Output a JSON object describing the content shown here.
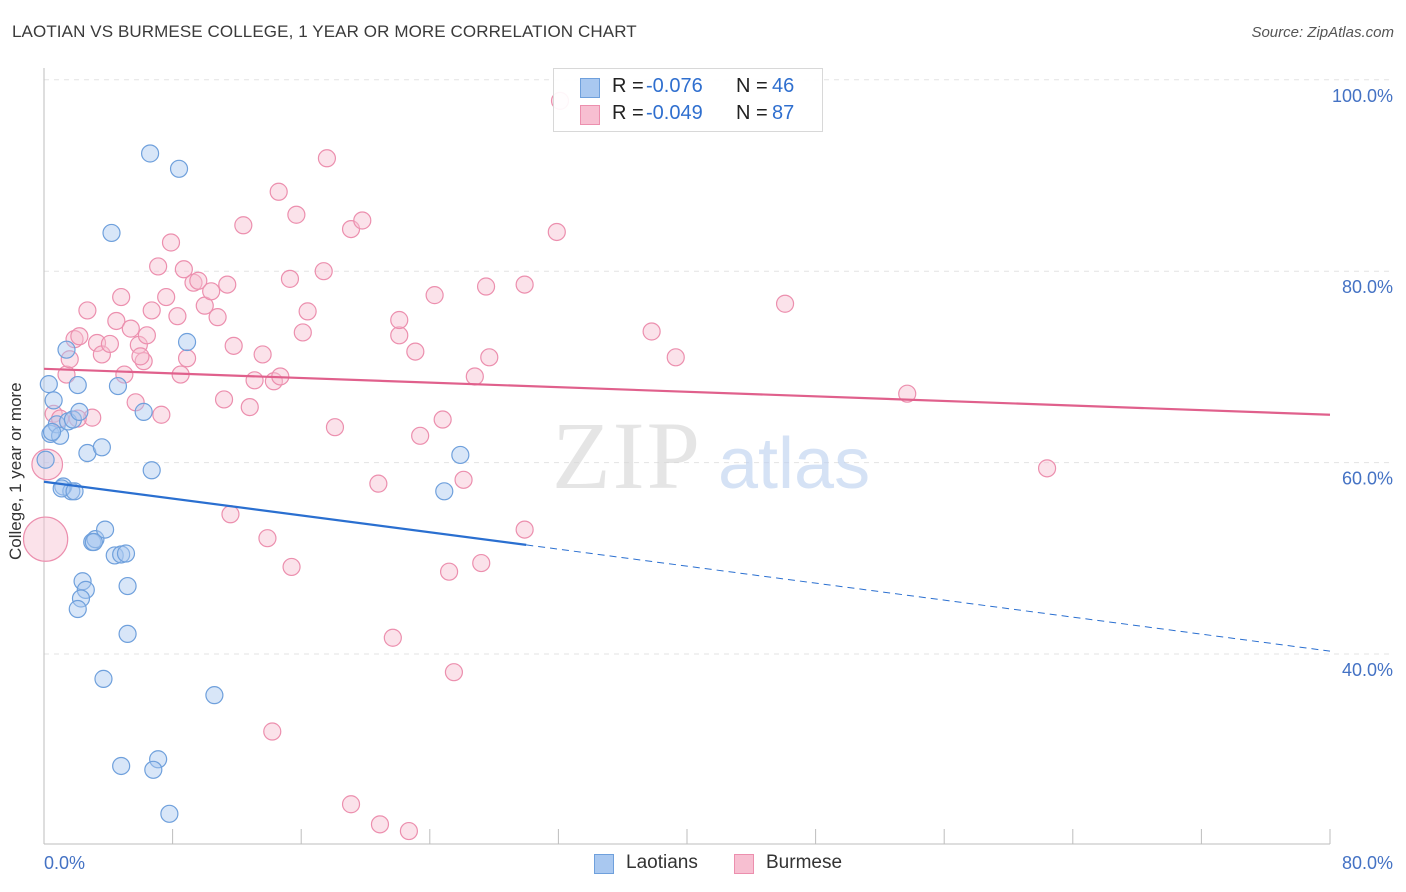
{
  "title": "LAOTIAN VS BURMESE COLLEGE, 1 YEAR OR MORE CORRELATION CHART",
  "source": "Source: ZipAtlas.com",
  "watermark": {
    "zip": "ZIP",
    "atlas": "atlas"
  },
  "legend": {
    "rows": [
      {
        "r_label": "R =",
        "r_value": "-0.076",
        "n_label": "N =",
        "n_value": "46"
      },
      {
        "r_label": "R =",
        "r_value": "-0.049",
        "n_label": "N =",
        "n_value": "87"
      }
    ]
  },
  "colors": {
    "laotians_fill": "#a9c8f0",
    "laotians_stroke": "#6fa0dc",
    "laotians_line": "#2a6fd0",
    "burmese_fill": "#f7bfd1",
    "burmese_stroke": "#ec8fae",
    "burmese_line": "#e0608c",
    "axis_text": "#4472c4",
    "grid": "#e3e3e3"
  },
  "chart_data": {
    "type": "scatter",
    "title": "LAOTIAN VS BURMESE COLLEGE, 1 YEAR OR MORE CORRELATION CHART",
    "xlabel": "",
    "ylabel": "College, 1 year or more",
    "xlim": [
      0,
      80
    ],
    "ylim": [
      20,
      102
    ],
    "x_tick_labels": [
      {
        "value": 0,
        "label": "0.0%"
      },
      {
        "value": 80,
        "label": "80.0%"
      }
    ],
    "y_tick_labels": [
      {
        "value": 40,
        "label": "40.0%"
      },
      {
        "value": 60,
        "label": "60.0%"
      },
      {
        "value": 80,
        "label": "80.0%"
      },
      {
        "value": 100,
        "label": "100.0%"
      }
    ],
    "series": [
      {
        "name": "Laotians",
        "r": -0.076,
        "n": 46,
        "trend": {
          "x0": 0,
          "y0": 58.0,
          "x1": 30,
          "y1": 51.4,
          "dash_to_x": 80,
          "dash_to_y": 40.3
        },
        "points": [
          [
            0.1,
            60.3,
            1
          ],
          [
            0.3,
            68.2,
            1
          ],
          [
            0.4,
            63.0,
            1
          ],
          [
            0.6,
            66.5,
            1
          ],
          [
            0.8,
            64.0,
            1
          ],
          [
            1.0,
            62.8,
            1
          ],
          [
            1.2,
            57.5,
            1
          ],
          [
            1.4,
            71.8,
            1
          ],
          [
            1.5,
            64.3,
            1
          ],
          [
            1.7,
            57.0,
            1
          ],
          [
            1.8,
            64.5,
            1
          ],
          [
            2.1,
            68.1,
            1
          ],
          [
            2.2,
            65.3,
            1
          ],
          [
            2.7,
            61.0,
            1
          ],
          [
            3.0,
            51.7,
            1
          ],
          [
            3.2,
            52.0,
            1
          ],
          [
            3.6,
            61.6,
            1
          ],
          [
            3.8,
            53.0,
            1
          ],
          [
            4.2,
            84.0,
            1
          ],
          [
            4.4,
            50.3,
            1
          ],
          [
            4.6,
            68.0,
            1
          ],
          [
            4.8,
            50.4,
            1
          ],
          [
            5.1,
            50.5,
            1
          ],
          [
            5.2,
            47.1,
            1
          ],
          [
            6.2,
            65.3,
            1
          ],
          [
            6.6,
            92.3,
            1
          ],
          [
            6.7,
            59.2,
            1
          ],
          [
            8.4,
            90.7,
            1
          ],
          [
            8.9,
            72.6,
            1
          ],
          [
            10.6,
            35.7,
            1
          ],
          [
            1.1,
            57.3,
            1
          ],
          [
            2.4,
            47.6,
            1
          ],
          [
            2.6,
            46.7,
            1
          ],
          [
            2.3,
            45.8,
            1
          ],
          [
            2.1,
            44.7,
            1
          ],
          [
            5.2,
            42.1,
            1
          ],
          [
            3.7,
            37.4,
            1
          ],
          [
            4.8,
            28.3,
            1
          ],
          [
            7.1,
            29.0,
            1
          ],
          [
            6.8,
            27.9,
            1
          ],
          [
            7.8,
            23.3,
            1
          ],
          [
            24.9,
            57.0,
            1
          ],
          [
            25.9,
            60.8,
            1
          ],
          [
            1.9,
            57.0,
            1
          ],
          [
            3.1,
            51.7,
            1
          ],
          [
            0.5,
            63.2,
            1
          ]
        ]
      },
      {
        "name": "Burmese",
        "r": -0.049,
        "n": 87,
        "trend": {
          "x0": 0,
          "y0": 69.8,
          "x1": 80,
          "y1": 65.0
        },
        "points": [
          [
            0.1,
            52.0,
            2.6
          ],
          [
            0.2,
            59.8,
            1.8
          ],
          [
            0.6,
            65.1,
            1
          ],
          [
            1.0,
            64.6,
            1
          ],
          [
            1.4,
            69.2,
            1
          ],
          [
            1.6,
            70.8,
            1
          ],
          [
            1.9,
            72.9,
            1
          ],
          [
            2.2,
            73.2,
            1
          ],
          [
            2.7,
            75.9,
            1
          ],
          [
            3.0,
            64.7,
            1
          ],
          [
            3.3,
            72.5,
            1
          ],
          [
            3.6,
            71.3,
            1
          ],
          [
            4.1,
            72.4,
            1
          ],
          [
            4.5,
            74.8,
            1
          ],
          [
            4.8,
            77.3,
            1
          ],
          [
            5.0,
            69.2,
            1
          ],
          [
            5.4,
            74.0,
            1
          ],
          [
            5.7,
            66.3,
            1
          ],
          [
            5.9,
            72.3,
            1
          ],
          [
            6.2,
            70.6,
            1
          ],
          [
            6.4,
            73.3,
            1
          ],
          [
            6.7,
            75.9,
            1
          ],
          [
            7.1,
            80.5,
            1
          ],
          [
            7.3,
            65.0,
            1
          ],
          [
            7.6,
            77.3,
            1
          ],
          [
            7.9,
            83.0,
            1
          ],
          [
            8.3,
            75.3,
            1
          ],
          [
            8.5,
            69.2,
            1
          ],
          [
            8.9,
            70.9,
            1
          ],
          [
            9.3,
            78.8,
            1
          ],
          [
            9.6,
            79.0,
            1
          ],
          [
            10.0,
            76.4,
            1
          ],
          [
            10.4,
            77.9,
            1
          ],
          [
            10.8,
            75.2,
            1
          ],
          [
            11.2,
            66.6,
            1
          ],
          [
            11.4,
            78.6,
            1
          ],
          [
            11.8,
            72.2,
            1
          ],
          [
            12.4,
            84.8,
            1
          ],
          [
            12.8,
            65.8,
            1
          ],
          [
            13.1,
            68.6,
            1
          ],
          [
            13.6,
            71.3,
            1
          ],
          [
            14.3,
            68.5,
            1
          ],
          [
            14.7,
            69.0,
            1
          ],
          [
            14.6,
            88.3,
            1
          ],
          [
            15.3,
            79.2,
            1
          ],
          [
            15.7,
            85.9,
            1
          ],
          [
            16.1,
            73.6,
            1
          ],
          [
            16.4,
            75.8,
            1
          ],
          [
            17.4,
            80.0,
            1
          ],
          [
            17.6,
            91.8,
            1
          ],
          [
            18.1,
            63.7,
            1
          ],
          [
            19.1,
            84.4,
            1
          ],
          [
            19.8,
            85.3,
            1
          ],
          [
            20.8,
            57.8,
            1
          ],
          [
            21.7,
            41.7,
            1
          ],
          [
            22.1,
            73.3,
            1
          ],
          [
            23.1,
            71.6,
            1
          ],
          [
            23.4,
            62.8,
            1
          ],
          [
            24.8,
            64.5,
            1
          ],
          [
            24.3,
            77.5,
            1
          ],
          [
            25.2,
            48.6,
            1
          ],
          [
            25.5,
            38.1,
            1
          ],
          [
            26.8,
            69.0,
            1
          ],
          [
            27.5,
            78.4,
            1
          ],
          [
            27.7,
            71.0,
            1
          ],
          [
            29.9,
            53.0,
            1
          ],
          [
            29.9,
            78.6,
            1
          ],
          [
            31.9,
            84.1,
            1
          ],
          [
            32.1,
            97.8,
            1
          ],
          [
            37.8,
            73.7,
            1
          ],
          [
            39.3,
            71.0,
            1
          ],
          [
            46.1,
            76.6,
            1
          ],
          [
            53.7,
            67.2,
            1
          ],
          [
            62.4,
            59.4,
            1
          ],
          [
            13.9,
            52.1,
            1
          ],
          [
            11.6,
            54.6,
            1
          ],
          [
            15.4,
            49.1,
            1
          ],
          [
            14.2,
            31.9,
            1
          ],
          [
            19.1,
            24.3,
            1
          ],
          [
            20.9,
            22.2,
            1
          ],
          [
            22.7,
            21.5,
            1
          ],
          [
            27.2,
            49.5,
            1
          ],
          [
            26.1,
            58.2,
            1
          ],
          [
            2.1,
            64.6,
            1
          ],
          [
            6.0,
            71.1,
            1
          ],
          [
            8.7,
            80.2,
            1
          ],
          [
            22.1,
            74.9,
            1
          ]
        ]
      }
    ]
  }
}
